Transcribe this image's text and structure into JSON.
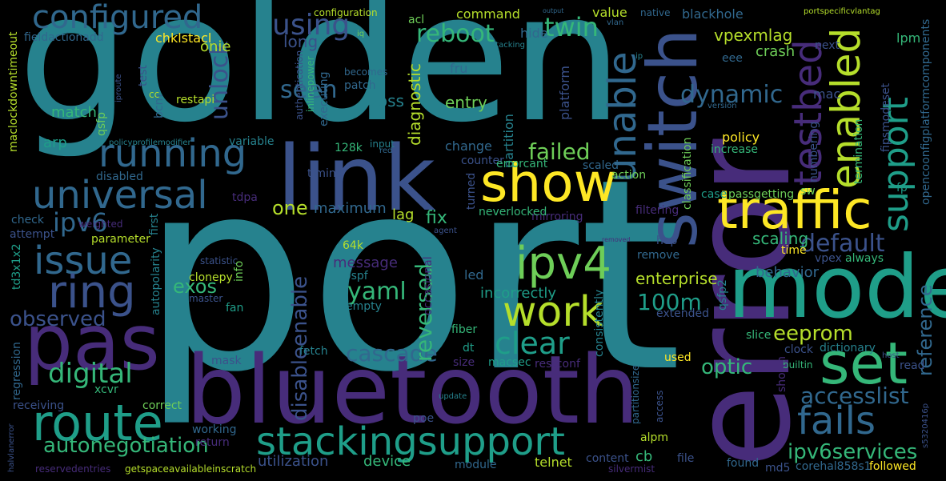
{
  "background": "#000000",
  "palette": {
    "dark_purple": "#440154",
    "indigo": "#472c7a",
    "blue": "#3b528b",
    "steel": "#31688e",
    "teal": "#26828e",
    "sea": "#1f9e89",
    "green": "#35b779",
    "lime": "#6ece58",
    "yellowgreen": "#b5de2b",
    "yellow": "#fde725"
  },
  "words": [
    {
      "text": "port",
      "color": "#26828e"
    },
    {
      "text": "golden",
      "color": "#26828e"
    },
    {
      "text": "error",
      "color": "#472c7a"
    },
    {
      "text": "bluetooth",
      "color": "#472c7a"
    },
    {
      "text": "link",
      "color": "#3b528b"
    },
    {
      "text": "mode",
      "color": "#1f9e89"
    },
    {
      "text": "pas",
      "color": "#472c7a"
    },
    {
      "text": "switch",
      "color": "#3b528b"
    },
    {
      "text": "show",
      "color": "#fde725"
    },
    {
      "text": "traffic",
      "color": "#fde725"
    },
    {
      "text": "set",
      "color": "#35b779"
    },
    {
      "text": "route",
      "color": "#1f9e89"
    },
    {
      "text": "stackingsupport",
      "color": "#1f9e89"
    },
    {
      "text": "ipv4",
      "color": "#6ece58"
    },
    {
      "text": "work",
      "color": "#b5de2b"
    },
    {
      "text": "running",
      "color": "#31688e"
    },
    {
      "text": "universal",
      "color": "#31688e"
    },
    {
      "text": "issue",
      "color": "#31688e"
    },
    {
      "text": "ring",
      "color": "#3b528b"
    },
    {
      "text": "configured",
      "color": "#31688e"
    },
    {
      "text": "fails",
      "color": "#31688e"
    },
    {
      "text": "enabled",
      "color": "#b5de2b"
    },
    {
      "text": "support",
      "color": "#1f9e89"
    },
    {
      "text": "testbed",
      "color": "#472c7a"
    },
    {
      "text": "unable",
      "color": "#31688e"
    },
    {
      "text": "clear",
      "color": "#1f9e89"
    },
    {
      "text": "ipv6",
      "color": "#31688e"
    },
    {
      "text": "digital",
      "color": "#35b779"
    },
    {
      "text": "observed",
      "color": "#3b528b"
    },
    {
      "text": "autonegotiation",
      "color": "#35b779"
    },
    {
      "text": "ipv6services",
      "color": "#35b779"
    },
    {
      "text": "accesslist",
      "color": "#31688e"
    },
    {
      "text": "eeprom",
      "color": "#b5de2b"
    },
    {
      "text": "optic",
      "color": "#35b779"
    },
    {
      "text": "default",
      "color": "#3b528b"
    },
    {
      "text": "100m",
      "color": "#1f9e89"
    },
    {
      "text": "cascade",
      "color": "#31688e"
    },
    {
      "text": "yaml",
      "color": "#35b779"
    },
    {
      "text": "reversed",
      "color": "#35b779"
    },
    {
      "text": "disableenable",
      "color": "#3b528b"
    },
    {
      "text": "failed",
      "color": "#6ece58"
    },
    {
      "text": "twin",
      "color": "#35b779"
    },
    {
      "text": "reboot",
      "color": "#35b779"
    },
    {
      "text": "using",
      "color": "#3b528b"
    },
    {
      "text": "unlock",
      "color": "#3b528b"
    },
    {
      "text": "seen",
      "color": "#31688e"
    },
    {
      "text": "dynamic",
      "color": "#31688e"
    },
    {
      "text": "reference",
      "color": "#31688e"
    },
    {
      "text": "scaling",
      "color": "#35b779"
    },
    {
      "text": "vpexmlag",
      "color": "#b5de2b"
    },
    {
      "text": "crash",
      "color": "#6ece58"
    },
    {
      "text": "enterprise",
      "color": "#b5de2b"
    },
    {
      "text": "behavior",
      "color": "#31688e"
    },
    {
      "text": "one",
      "color": "#b5de2b"
    },
    {
      "text": "fix",
      "color": "#35b779"
    },
    {
      "text": "lag",
      "color": "#b5de2b"
    },
    {
      "text": "maximum",
      "color": "#31688e"
    },
    {
      "text": "message",
      "color": "#472c7a"
    },
    {
      "text": "incorrectly",
      "color": "#1f9e89"
    },
    {
      "text": "exos",
      "color": "#35b779"
    },
    {
      "text": "diagnostic",
      "color": "#b5de2b"
    },
    {
      "text": "partition",
      "color": "#26828e"
    },
    {
      "text": "entry",
      "color": "#6ece58"
    },
    {
      "text": "voss",
      "color": "#26828e"
    },
    {
      "text": "change",
      "color": "#31688e"
    },
    {
      "text": "command",
      "color": "#b5de2b"
    },
    {
      "text": "value",
      "color": "#b5de2b"
    },
    {
      "text": "hide",
      "color": "#31688e"
    },
    {
      "text": "long",
      "color": "#3b528b"
    },
    {
      "text": "onie",
      "color": "#b5de2b"
    },
    {
      "text": "chklstacl",
      "color": "#fde725"
    },
    {
      "text": "fieldactionadd",
      "color": "#31688e"
    },
    {
      "text": "match",
      "color": "#35b779"
    },
    {
      "text": "restapi",
      "color": "#b5de2b"
    },
    {
      "text": "arp",
      "color": "#1f9e89"
    },
    {
      "text": "qsfp",
      "color": "#6ece58"
    },
    {
      "text": "platform",
      "color": "#3b528b"
    },
    {
      "text": "mac",
      "color": "#3b528b"
    },
    {
      "text": "lpm",
      "color": "#35b779"
    },
    {
      "text": "blackhole",
      "color": "#31688e"
    },
    {
      "text": "eee",
      "color": "#31688e"
    },
    {
      "text": "next",
      "color": "#3b528b"
    },
    {
      "text": "fru",
      "color": "#31688e"
    },
    {
      "text": "policy",
      "color": "#fde725"
    },
    {
      "text": "increase",
      "color": "#35b779"
    },
    {
      "text": "sw",
      "color": "#6ece58"
    },
    {
      "text": "fp",
      "color": "#1f9e89"
    },
    {
      "text": "vpex",
      "color": "#3b528b"
    },
    {
      "text": "always",
      "color": "#35b779"
    },
    {
      "text": "time",
      "color": "#fde725"
    },
    {
      "text": "hop",
      "color": "#3b528b"
    },
    {
      "text": "remove",
      "color": "#31688e"
    },
    {
      "text": "led",
      "color": "#31688e"
    },
    {
      "text": "64k",
      "color": "#b5de2b"
    },
    {
      "text": "ospf",
      "color": "#26828e"
    },
    {
      "text": "clonepy",
      "color": "#b5de2b"
    },
    {
      "text": "timing",
      "color": "#3b528b"
    },
    {
      "text": "128k",
      "color": "#35b779"
    },
    {
      "text": "variable",
      "color": "#26828e"
    },
    {
      "text": "input",
      "color": "#26828e"
    },
    {
      "text": "counter",
      "color": "#3b528b"
    },
    {
      "text": "errorcant",
      "color": "#35b779"
    },
    {
      "text": "scaled",
      "color": "#31688e"
    },
    {
      "text": "action",
      "color": "#6ece58"
    },
    {
      "text": "turned",
      "color": "#3b528b"
    },
    {
      "text": "mirroring",
      "color": "#472c7a"
    },
    {
      "text": "filtering",
      "color": "#472c7a"
    },
    {
      "text": "neverlocked",
      "color": "#35b779"
    },
    {
      "text": "classification",
      "color": "#6ece58"
    },
    {
      "text": "case",
      "color": "#1f9e89"
    },
    {
      "text": "passgetting",
      "color": "#6ece58"
    },
    {
      "text": "numbering",
      "color": "#3b528b"
    },
    {
      "text": "termination",
      "color": "#35b779"
    },
    {
      "text": "fipsmodeset",
      "color": "#3b528b"
    },
    {
      "text": "opencoonfigplatformcomponents",
      "color": "#31688e"
    },
    {
      "text": "check",
      "color": "#31688e"
    },
    {
      "text": "attempt",
      "color": "#3b528b"
    },
    {
      "text": "weighted",
      "color": "#472c7a"
    },
    {
      "text": "parameter",
      "color": "#b5de2b"
    },
    {
      "text": "td3x1x2",
      "color": "#1f9e89"
    },
    {
      "text": "first",
      "color": "#26828e"
    },
    {
      "text": "tdpa",
      "color": "#472c7a"
    },
    {
      "text": "disabled",
      "color": "#31688e"
    },
    {
      "text": "statistic",
      "color": "#3b528b"
    },
    {
      "text": "master",
      "color": "#3b528b"
    },
    {
      "text": "info",
      "color": "#6ece58"
    },
    {
      "text": "autopolarity",
      "color": "#26828e"
    },
    {
      "text": "fan",
      "color": "#1f9e89"
    },
    {
      "text": "empty",
      "color": "#26828e"
    },
    {
      "text": "occasional",
      "color": "#472c7a"
    },
    {
      "text": "fiber",
      "color": "#35b779"
    },
    {
      "text": "extended",
      "color": "#3b528b"
    },
    {
      "text": "qsfp2",
      "color": "#26828e"
    },
    {
      "text": "slice",
      "color": "#35b779"
    },
    {
      "text": "clock",
      "color": "#3b528b"
    },
    {
      "text": "dictionary",
      "color": "#26828e"
    },
    {
      "text": "mask",
      "color": "#3b528b"
    },
    {
      "text": "fetch",
      "color": "#26828e"
    },
    {
      "text": "dt",
      "color": "#1f9e89"
    },
    {
      "text": "size",
      "color": "#472c7a"
    },
    {
      "text": "macsec",
      "color": "#1f9e89"
    },
    {
      "text": "restconf",
      "color": "#472c7a"
    },
    {
      "text": "consistently",
      "color": "#26828e"
    },
    {
      "text": "used",
      "color": "#fde725"
    },
    {
      "text": "builtin",
      "color": "#35b779"
    },
    {
      "text": "shown",
      "color": "#472c7a"
    },
    {
      "text": "read",
      "color": "#3b528b"
    },
    {
      "text": "regression",
      "color": "#31688e"
    },
    {
      "text": "receiving",
      "color": "#3b528b"
    },
    {
      "text": "xcvr",
      "color": "#35b779"
    },
    {
      "text": "correct",
      "color": "#6ece58"
    },
    {
      "text": "working",
      "color": "#31688e"
    },
    {
      "text": "return",
      "color": "#472c7a"
    },
    {
      "text": "utilization",
      "color": "#3b528b"
    },
    {
      "text": "device",
      "color": "#35b779"
    },
    {
      "text": "poe",
      "color": "#3b528b"
    },
    {
      "text": "module",
      "color": "#31688e"
    },
    {
      "text": "telnet",
      "color": "#b5de2b"
    },
    {
      "text": "alpm",
      "color": "#b5de2b"
    },
    {
      "text": "cb",
      "color": "#35b779"
    },
    {
      "text": "content",
      "color": "#3b528b"
    },
    {
      "text": "partitionsize",
      "color": "#31688e"
    },
    {
      "text": "access",
      "color": "#3b528b"
    },
    {
      "text": "file",
      "color": "#3b528b"
    },
    {
      "text": "found",
      "color": "#31688e"
    },
    {
      "text": "md5",
      "color": "#3b528b"
    },
    {
      "text": "corehal858s1",
      "color": "#31688e"
    },
    {
      "text": "followed",
      "color": "#fde725"
    },
    {
      "text": "s5320416p",
      "color": "#3b528b"
    },
    {
      "text": "getspaceavailableinscratch",
      "color": "#b5de2b"
    },
    {
      "text": "reservedentries",
      "color": "#472c7a"
    },
    {
      "text": "halvlanerror",
      "color": "#3b528b"
    },
    {
      "text": "update",
      "color": "#26828e"
    },
    {
      "text": "silvermist",
      "color": "#472c7a"
    },
    {
      "text": "host",
      "color": "#3b528b"
    },
    {
      "text": "maclockdowntimeout",
      "color": "#b5de2b"
    },
    {
      "text": "iproute",
      "color": "#3b528b"
    },
    {
      "text": "test",
      "color": "#3b528b"
    },
    {
      "text": "bcm",
      "color": "#31688e"
    },
    {
      "text": "cc",
      "color": "#b5de2b"
    },
    {
      "text": "policyprofilemodifier",
      "color": "#26828e"
    },
    {
      "text": "authentication",
      "color": "#3b528b"
    },
    {
      "text": "inlinepower",
      "color": "#35b779"
    },
    {
      "text": "executing",
      "color": "#31688e"
    },
    {
      "text": "becomes",
      "color": "#31688e"
    },
    {
      "text": "patch",
      "color": "#31688e"
    },
    {
      "text": "configuration",
      "color": "#b5de2b"
    },
    {
      "text": "iq",
      "color": "#6ece58"
    },
    {
      "text": "acl",
      "color": "#6ece58"
    },
    {
      "text": "native",
      "color": "#31688e"
    },
    {
      "text": "output",
      "color": "#31688e"
    },
    {
      "text": "vlan",
      "color": "#31688e"
    },
    {
      "text": "stacking",
      "color": "#26828e"
    },
    {
      "text": "portspecificvlantag",
      "color": "#b5de2b"
    },
    {
      "text": "ip",
      "color": "#26828e"
    },
    {
      "text": "version",
      "color": "#31688e"
    },
    {
      "text": "red",
      "color": "#31688e"
    },
    {
      "text": "agent",
      "color": "#3b528b"
    },
    {
      "text": "removed",
      "color": "#472c7a"
    }
  ]
}
